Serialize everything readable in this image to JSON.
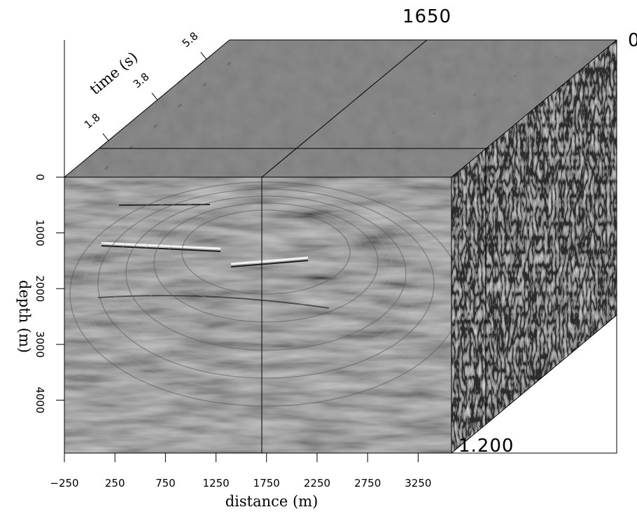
{
  "figure": {
    "front_slice_position": "1650",
    "time_slice_value": "0",
    "depth_slice_value": "1.200"
  },
  "chart_data": {
    "type": "seismic-cube",
    "x_axis": {
      "label": "distance (m)",
      "ticks": [
        "−250",
        "250",
        "750",
        "1250",
        "1750",
        "2250",
        "2750",
        "3250"
      ],
      "tick_values": [
        -250,
        250,
        750,
        1250,
        1750,
        2250,
        2750,
        3250
      ],
      "range": [
        -250,
        3580
      ]
    },
    "y_axis": {
      "label": "depth (m)",
      "ticks": [
        "0",
        "1000",
        "2000",
        "3000",
        "4000"
      ],
      "tick_values": [
        0,
        1000,
        2000,
        3000,
        4000
      ],
      "range": [
        0,
        4950
      ]
    },
    "z_axis": {
      "label": "time (s)",
      "ticks": [
        "1.8",
        "3.8",
        "5.8"
      ],
      "tick_values": [
        1.8,
        3.8,
        5.8
      ],
      "range": [
        0,
        6.75
      ]
    },
    "grid": false
  }
}
